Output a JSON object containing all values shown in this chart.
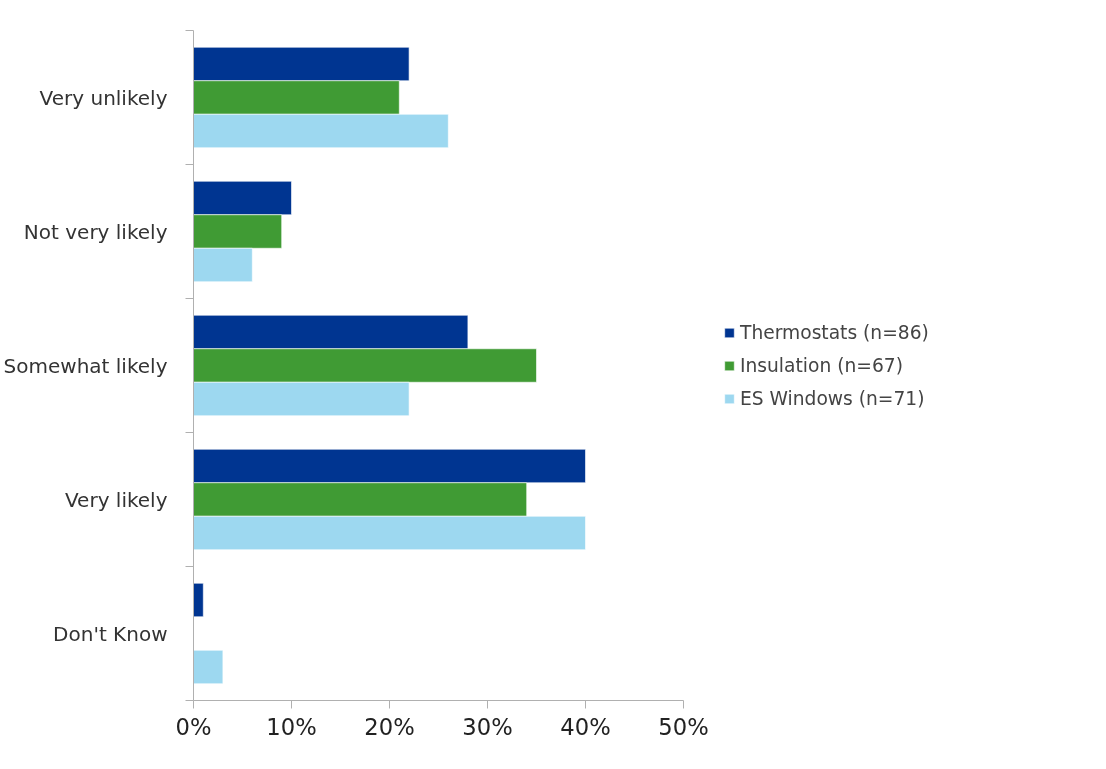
{
  "chart_data": {
    "type": "bar",
    "orientation": "horizontal",
    "categories": [
      "Very unlikely",
      "Not very likely",
      "Somewhat likely",
      "Very likely",
      "Don't Know"
    ],
    "series": [
      {
        "name": "Thermostats (n=86)",
        "color": "#003591",
        "values": [
          22,
          10,
          28,
          40,
          1
        ]
      },
      {
        "name": "Insulation (n=67)",
        "color": "#409b34",
        "values": [
          21,
          9,
          35,
          34,
          null
        ]
      },
      {
        "name": "ES Windows (n=71)",
        "color": "#9dd8f0",
        "values": [
          26,
          6,
          22,
          40,
          3
        ]
      }
    ],
    "xlim": [
      0,
      50
    ],
    "xticks": [
      {
        "value": 0,
        "label": "0%"
      },
      {
        "value": 10,
        "label": "10%"
      },
      {
        "value": 20,
        "label": "20%"
      },
      {
        "value": 30,
        "label": "30%"
      },
      {
        "value": 40,
        "label": "40%"
      },
      {
        "value": 50,
        "label": "50%"
      }
    ],
    "grid": false,
    "legend": "right"
  }
}
